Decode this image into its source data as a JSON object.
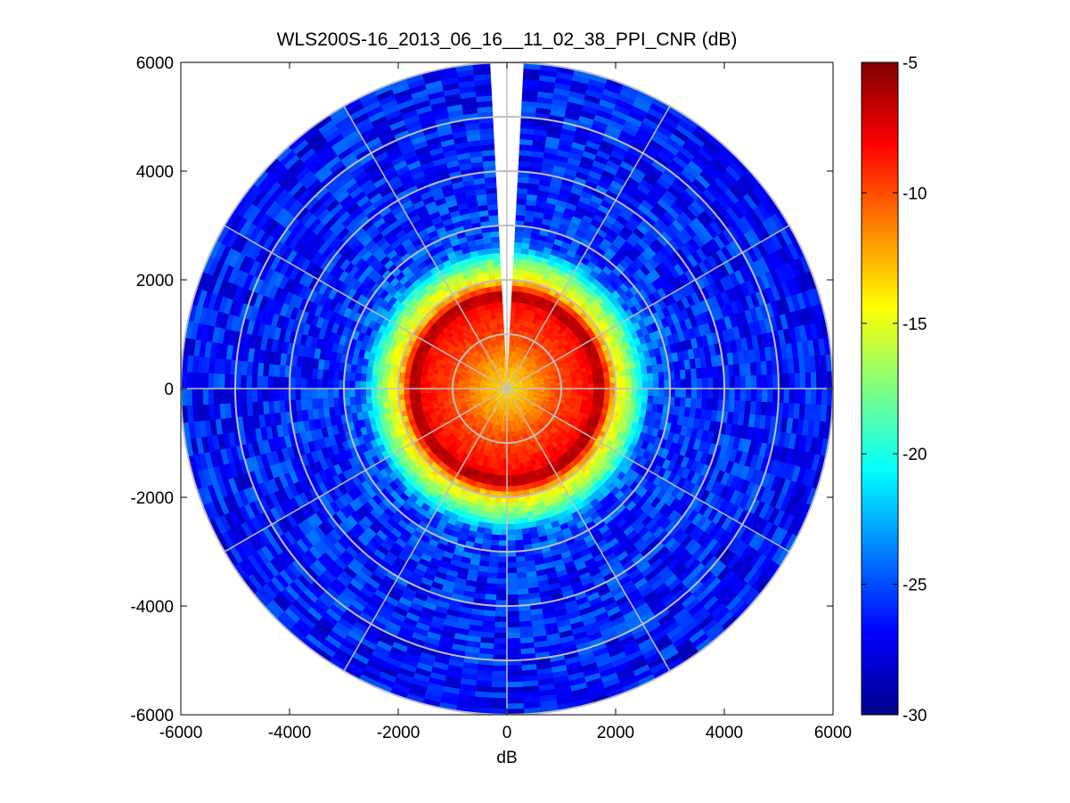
{
  "chart_data": {
    "type": "heatmap",
    "subtype": "ppi-polar",
    "title": "WLS200S-16_2013_06_16__11_02_38_PPI_CNR (dB)",
    "xlabel": "dB",
    "ylabel": "",
    "xlim": [
      -6000,
      6000
    ],
    "ylim": [
      -6000,
      6000
    ],
    "xticks": [
      -6000,
      -4000,
      -2000,
      0,
      2000,
      4000,
      6000
    ],
    "yticks": [
      6000,
      4000,
      2000,
      0,
      -2000,
      -4000,
      -6000
    ],
    "colorbar": {
      "colormap": "jet",
      "clim": [
        -30,
        -5
      ],
      "ticks": [
        -5,
        -10,
        -15,
        -20,
        -25,
        -30
      ]
    },
    "polar_grid": {
      "rings": [
        1000,
        2000,
        3000,
        4000,
        5000,
        6000
      ],
      "spoke_angles_deg": [
        0,
        30,
        60,
        90,
        120,
        150,
        180,
        210,
        240,
        270,
        300,
        330
      ]
    },
    "data_radius_max": 6000,
    "missing_sector_deg": [
      -4,
      4
    ],
    "cnr_profile": {
      "range_m": [
        0,
        200,
        500,
        900,
        1300,
        1600,
        1700,
        1800,
        2000,
        2200,
        2400,
        2700,
        3500,
        6000
      ],
      "cnr_db": [
        -14,
        -13,
        -12,
        -10,
        -9,
        -8,
        -5,
        -8,
        -14,
        -16,
        -19,
        -25,
        -26,
        -26.5
      ]
    },
    "grid": true
  }
}
